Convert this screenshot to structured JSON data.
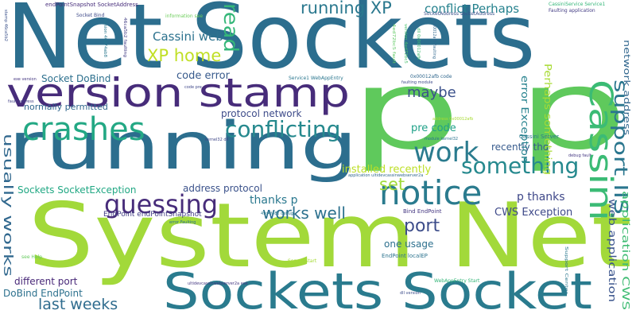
{
  "word_cloud": {
    "words": [
      {
        "text": "Net Sockets",
        "color": "#2c6e8e"
      },
      {
        "text": "System Net",
        "color": "#a2d93a"
      },
      {
        "text": "running",
        "color": "#2c6e8e"
      },
      {
        "text": "p p",
        "color": "#5fc95c"
      },
      {
        "text": "Sockets Socket",
        "color": "#2a7b8e"
      },
      {
        "text": "version stamp",
        "color": "#472c7a"
      },
      {
        "text": "crashes",
        "color": "#23a884"
      },
      {
        "text": "conflicting",
        "color": "#26898e"
      },
      {
        "text": "notice",
        "color": "#2a7b8e"
      },
      {
        "text": "Cassini",
        "color": "#3bbb75"
      },
      {
        "text": "work",
        "color": "#2a7b8e"
      },
      {
        "text": "something",
        "color": "#26898e"
      },
      {
        "text": "guessing",
        "color": "#472c7a"
      },
      {
        "text": "running XP",
        "color": "#2a788e"
      },
      {
        "text": "XP home",
        "color": "#c0df25"
      },
      {
        "text": "Cassini web",
        "color": "#2c728e"
      },
      {
        "text": "read",
        "color": "#35b779"
      },
      {
        "text": "support IIS",
        "color": "#2a768e"
      },
      {
        "text": "conflict Perhaps",
        "color": "#26828e"
      },
      {
        "text": "maybe",
        "color": "#3b518b"
      },
      {
        "text": "works well",
        "color": "#2c718e"
      },
      {
        "text": "port",
        "color": "#3d4d8a"
      },
      {
        "text": "set",
        "color": "#a0da39"
      },
      {
        "text": "last weeks",
        "color": "#2f6c8e"
      },
      {
        "text": "usually works",
        "color": "#31688e"
      },
      {
        "text": "pre code",
        "color": "#1fa188"
      },
      {
        "text": "code error",
        "color": "#375a8c"
      },
      {
        "text": "Socket DoBind",
        "color": "#2d708e"
      },
      {
        "text": "normally permitted",
        "color": "#30678d"
      },
      {
        "text": "protocol network",
        "color": "#3e4c8a"
      },
      {
        "text": "thanks p",
        "color": "#2a788e"
      },
      {
        "text": "installed recently",
        "color": "#bddf26"
      },
      {
        "text": "Sockets SocketException",
        "color": "#22a884"
      },
      {
        "text": "address protocol",
        "color": "#3b528b"
      },
      {
        "text": "p thanks",
        "color": "#3f4889"
      },
      {
        "text": "CWS Exception",
        "color": "#3e4989"
      },
      {
        "text": "one usage",
        "color": "#2d708e"
      },
      {
        "text": "different port",
        "color": "#482878"
      },
      {
        "text": "DoBind EndPoint",
        "color": "#2d718e"
      },
      {
        "text": "recently tho",
        "color": "#375b8d"
      },
      {
        "text": "error Exception",
        "color": "#26828e"
      },
      {
        "text": "Perhaps something",
        "color": "#a8db34"
      },
      {
        "text": "web application",
        "color": "#3a548c"
      },
      {
        "text": "application CWS",
        "color": "#3fbc73"
      },
      {
        "text": "network address",
        "color": "#31678e"
      },
      {
        "text": "EndPoint endPointSnapshot",
        "color": "#433e85"
      },
      {
        "text": "Bind EndPoint",
        "color": "#453781"
      },
      {
        "text": "EndPoint localEP",
        "color": "#2c738e"
      },
      {
        "text": "Cassini Server",
        "color": "#2a788e"
      },
      {
        "text": "endPointSnapshot SocketAddress",
        "color": "#472d7b"
      },
      {
        "text": "Socket Bind",
        "color": "#3e4a89"
      },
      {
        "text": "information see",
        "color": "#6ccd5a"
      },
      {
        "text": "SocketAddress socketAddress",
        "color": "#3b528b"
      },
      {
        "text": "CassiniService Service1",
        "color": "#35b779"
      },
      {
        "text": "Faulting application",
        "color": "#433d84"
      },
      {
        "text": "Service1 WebAppEntry",
        "color": "#2a768e"
      },
      {
        "text": "0x00012afb code",
        "color": "#31688e"
      },
      {
        "text": "faulting module",
        "color": "#3e4a89"
      },
      {
        "text": "module kernel32",
        "color": "#2c738e"
      },
      {
        "text": "WebAppEntry Start",
        "color": "#34b679"
      },
      {
        "text": "Server Start",
        "color": "#a5db36"
      },
      {
        "text": "see Help",
        "color": "#65cb5e"
      },
      {
        "text": "Support Center",
        "color": "#2a778e"
      },
      {
        "text": "dll version",
        "color": "#3d4e8a"
      },
      {
        "text": "kernel32 dll",
        "color": "#3f4788"
      },
      {
        "text": "debug fault",
        "color": "#453882"
      },
      {
        "text": "fault address",
        "color": "#424086"
      },
      {
        "text": "stamp 46ca5b2",
        "color": "#3b528b"
      },
      {
        "text": "exe version",
        "color": "#453781"
      },
      {
        "text": "code pre",
        "color": "#3f4889"
      },
      {
        "text": "error Faulting",
        "color": "#2c728e"
      },
      {
        "text": "49c4f482 debug",
        "color": "#2a788e"
      },
      {
        "text": "ultidevcassinwebserver2a exe",
        "color": "#453882"
      },
      {
        "text": "application ultidevcassinwebserver2a",
        "color": "#31678e"
      },
      {
        "text": "version 46a74ab8",
        "color": "#2a778e"
      },
      {
        "text": "address 0x00012afb",
        "color": "#a8db34"
      },
      {
        "text": "dll 0x00012afb",
        "color": "#40bd72"
      },
      {
        "text": "46ca5b2 faulting",
        "color": "#433e85"
      },
      {
        "text": "4ed72bc5 fault",
        "color": "#5ec962"
      },
      {
        "text": "version 4ed72bc5",
        "color": "#4ac16d"
      },
      {
        "text": "0x00012afb Faulting",
        "color": "#31688e"
      }
    ]
  }
}
